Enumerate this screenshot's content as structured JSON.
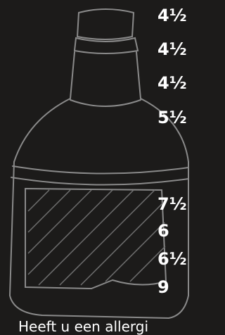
{
  "prices": [
    "4½",
    "4½",
    "4½",
    "5½",
    "7½",
    "6",
    "6½",
    "9"
  ],
  "footer": "Heeft u een allergi"
}
